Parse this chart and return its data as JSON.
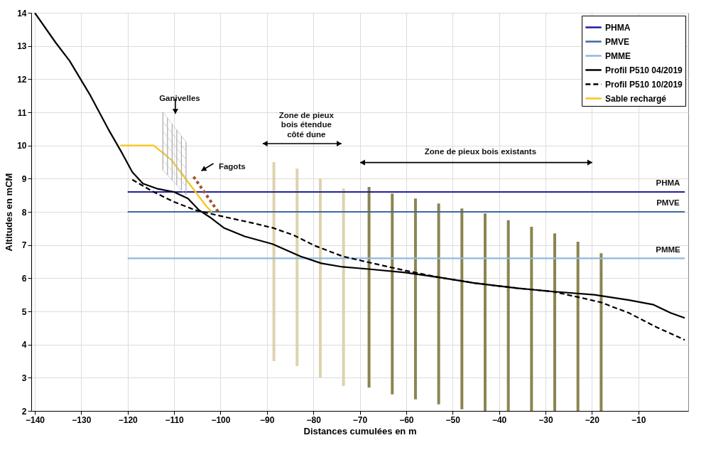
{
  "chart_data": {
    "type": "line",
    "xlabel": "Distances cumulées en m",
    "ylabel": "Altitudes en mCM",
    "xlim": [
      -140,
      0
    ],
    "xticks": [
      -140,
      -130,
      -120,
      -110,
      -100,
      -90,
      -80,
      -70,
      -60,
      -50,
      -40,
      -30,
      -20,
      -10
    ],
    "ylim": [
      2,
      14
    ],
    "yticks": [
      2,
      3,
      4,
      5,
      6,
      7,
      8,
      9,
      10,
      11,
      12,
      13,
      14
    ],
    "grid": true,
    "legend": "top right",
    "series": [
      {
        "type": "bar",
        "color": "#ddd3ae",
        "x": [
          -88.5,
          -83.5,
          -78.5,
          -73.5
        ],
        "base": [
          3.5,
          3.35,
          3.0,
          2.75
        ],
        "values": [
          6.0,
          5.95,
          6.0,
          5.95
        ]
      },
      {
        "type": "bar",
        "color": "#8c8450",
        "x": [
          -68,
          -63,
          -58,
          -53,
          -48,
          -43,
          -38,
          -33,
          -28,
          -23,
          -18
        ],
        "base": [
          2.7,
          2.5,
          2.35,
          2.2,
          2.05,
          2,
          2,
          2,
          2,
          2,
          2
        ],
        "values": [
          6.05,
          6.05,
          6.05,
          6.05,
          6.05,
          5.95,
          5.75,
          5.55,
          5.35,
          5.1,
          4.75
        ]
      },
      {
        "name": "PHMA",
        "color": "#1f1f9e",
        "line_style": "solid",
        "x": [
          -120,
          0
        ],
        "values": [
          8.6,
          8.6
        ]
      },
      {
        "name": "PMVE",
        "color": "#3d6a9e",
        "line_style": "solid",
        "x": [
          -120,
          0
        ],
        "values": [
          8.0,
          8.0
        ]
      },
      {
        "name": "PMME",
        "color": "#8fb9de",
        "line_style": "solid",
        "x": [
          -120,
          0
        ],
        "values": [
          6.6,
          6.6
        ]
      },
      {
        "name": "Profil P510 04/2019",
        "color": "#000000",
        "line_style": "solid",
        "x": [
          -140,
          -135.5,
          -132.5,
          -128,
          -124.2,
          -121.2,
          -119,
          -116.7,
          -113.7,
          -110,
          -107,
          -104.6,
          -102.3,
          -99.3,
          -94.8,
          -88.8,
          -82.8,
          -78.3,
          -73.7,
          -68.5,
          -60.2,
          -52.7,
          -45.1,
          -36.1,
          -28.6,
          -19.5,
          -12,
          -6.7,
          -3,
          0
        ],
        "values": [
          14,
          13.1,
          12.55,
          11.5,
          10.5,
          9.77,
          9.2,
          8.85,
          8.7,
          8.6,
          8.4,
          8.05,
          7.84,
          7.52,
          7.26,
          7.03,
          6.66,
          6.45,
          6.34,
          6.28,
          6.17,
          6.02,
          5.85,
          5.7,
          5.6,
          5.5,
          5.34,
          5.2,
          4.95,
          4.8
        ]
      },
      {
        "name": "Profil P510 10/2019",
        "color": "#000000",
        "line_style": "dashed",
        "x": [
          -119,
          -114.4,
          -110,
          -105.4,
          -100.8,
          -93.3,
          -88.8,
          -84.3,
          -79.7,
          -73.7,
          -68.5,
          -60.2,
          -52.7,
          -45.1,
          -36.1,
          -28.6,
          -22.6,
          -18,
          -12,
          -6,
          0
        ],
        "values": [
          8.97,
          8.6,
          8.3,
          8.05,
          7.9,
          7.67,
          7.52,
          7.3,
          6.98,
          6.66,
          6.49,
          6.23,
          6.02,
          5.85,
          5.7,
          5.6,
          5.42,
          5.27,
          4.95,
          4.52,
          4.14
        ]
      },
      {
        "name": "Sable rechargé",
        "color": "#f5c518",
        "line_style": "solid",
        "x": [
          -121.6,
          -114.4,
          -110.6,
          -107,
          -103,
          -101.9
        ],
        "values": [
          10,
          10,
          9.57,
          8.9,
          8.16,
          8.0
        ]
      },
      {
        "color": "#a0522d",
        "line_style": "dotted",
        "x": [
          -105.8,
          -100.5
        ],
        "values": [
          9.06,
          8.0
        ]
      }
    ],
    "annotations": [
      "Ganivelles",
      "Fagots",
      "Zone de pieux\nbois étendue\ncôté dune",
      "Zone de pieux bois existants",
      "PHMA",
      "PMVE",
      "PMME"
    ]
  }
}
